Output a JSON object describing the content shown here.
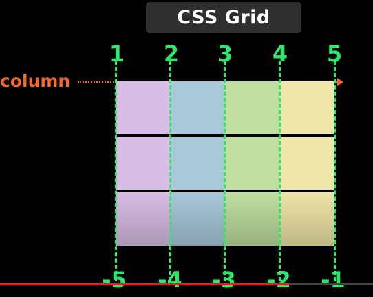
{
  "title": "CSS Grid",
  "label": "column",
  "top_numbers": [
    "1",
    "2",
    "3",
    "4",
    "5"
  ],
  "bottom_numbers": [
    "-5",
    "-4",
    "-3",
    "-2",
    "-1"
  ],
  "rows": 3,
  "columns": 4,
  "column_colors": [
    "#d8bde4",
    "#a9c9db",
    "#c0dfa1",
    "#f0e5a8"
  ],
  "colors": {
    "line_number": "#2ee86b",
    "column_label": "#f26a2e",
    "title_bg": "#2f2f2f",
    "progress": "#e02020"
  }
}
